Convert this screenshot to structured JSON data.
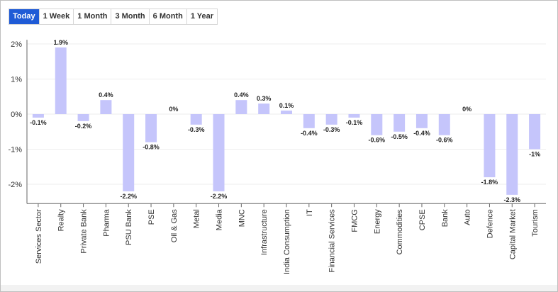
{
  "range_tabs": [
    {
      "label": "Today",
      "active": true
    },
    {
      "label": "1 Week",
      "active": false
    },
    {
      "label": "1 Month",
      "active": false
    },
    {
      "label": "3 Month",
      "active": false
    },
    {
      "label": "6 Month",
      "active": false
    },
    {
      "label": "1 Year",
      "active": false
    }
  ],
  "colors": {
    "bar": "#c5c5fb",
    "active_tab": "#1f5bd6",
    "grid": "#eeeeee",
    "axis": "#666666"
  },
  "chart_data": {
    "type": "bar",
    "title": "",
    "xlabel": "",
    "ylabel": "",
    "ylim": [
      -2.55,
      2.2
    ],
    "yticks": [
      -2,
      -1,
      0,
      1,
      2
    ],
    "ytick_labels": [
      "-2%",
      "-1%",
      "0%",
      "1%",
      "2%"
    ],
    "grid": true,
    "categories": [
      "Services Sector",
      "Realty",
      "Private Bank",
      "Pharma",
      "PSU Bank",
      "PSE",
      "Oil & Gas",
      "Metal",
      "Media",
      "MNC",
      "Infrastructure",
      "India Consumption",
      "IT",
      "Financial Services",
      "FMCG",
      "Energy",
      "Commodities",
      "CPSE",
      "Bank",
      "Auto",
      "Defence",
      "Capital Market",
      "Tourism"
    ],
    "values": [
      -0.1,
      1.9,
      -0.2,
      0.4,
      -2.2,
      -0.8,
      0,
      -0.3,
      -2.2,
      0.4,
      0.3,
      0.1,
      -0.4,
      -0.3,
      -0.1,
      -0.6,
      -0.5,
      -0.4,
      -0.6,
      0,
      -1.8,
      -2.3,
      -1
    ],
    "data_labels": [
      "-0.1%",
      "1.9%",
      "-0.2%",
      "0.4%",
      "-2.2%",
      "-0.8%",
      "0%",
      "-0.3%",
      "-2.2%",
      "0.4%",
      "0.3%",
      "0.1%",
      "-0.4%",
      "-0.3%",
      "-0.1%",
      "-0.6%",
      "-0.5%",
      "-0.4%",
      "-0.6%",
      "0%",
      "-1.8%",
      "-2.3%",
      "-1%"
    ]
  }
}
